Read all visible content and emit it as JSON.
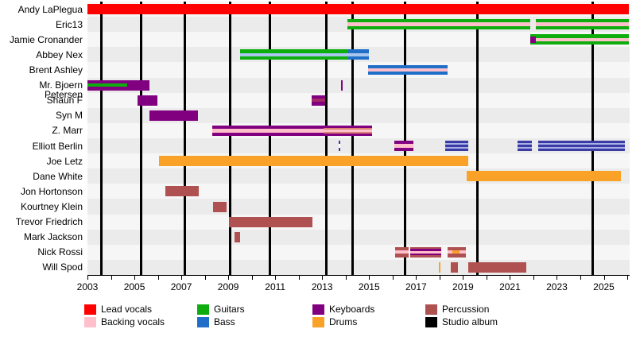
{
  "chart_data": {
    "type": "timeline",
    "x_axis": {
      "start_year": 2003,
      "end_year": 2026.1,
      "tick_labels": [
        "2003",
        "2005",
        "2007",
        "2009",
        "2011",
        "2013",
        "2015",
        "2017",
        "2019",
        "2021",
        "2023",
        "2025"
      ],
      "minor_tick_every_years": 1
    },
    "colors": {
      "red": "#FE0000",
      "pink": "#FFC0CB",
      "green": "#0CAD0C",
      "blue": "#1F6FC9",
      "lightblue": "#A9C6EE",
      "purple": "#800080",
      "magenta": "#A62A68",
      "salmon": "#DD8273",
      "indigo": "#3B3BA6",
      "lavender": "#A9B2E4",
      "orange": "#F9A227",
      "percussion": "#B05151",
      "black": "#000000",
      "white": "#FFFFFF"
    },
    "legend": [
      {
        "label": "Lead vocals",
        "color_key": "red",
        "col": 0,
        "row": 0
      },
      {
        "label": "Backing vocals",
        "color_key": "pink",
        "col": 0,
        "row": 1
      },
      {
        "label": "Guitars",
        "color_key": "green",
        "col": 1,
        "row": 0
      },
      {
        "label": "Bass",
        "color_key": "blue",
        "col": 1,
        "row": 1
      },
      {
        "label": "Keyboards",
        "color_key": "purple",
        "col": 2,
        "row": 0
      },
      {
        "label": "Drums",
        "color_key": "orange",
        "col": 2,
        "row": 1
      },
      {
        "label": "Percussion",
        "color_key": "percussion",
        "col": 3,
        "row": 0
      },
      {
        "label": "Studio album",
        "color_key": "black",
        "col": 3,
        "row": 1
      }
    ],
    "studio_album_lines_years": [
      2003.6,
      2005.27,
      2007.16,
      2009.09,
      2010.78,
      2013.18,
      2014.3,
      2016.53,
      2019.6,
      2024.54
    ],
    "members": [
      {
        "name": "Andy LaPlegua",
        "segments": [
          {
            "start": 2003.0,
            "end": 2026.05,
            "stripes": [
              "red"
            ]
          }
        ]
      },
      {
        "name": "Eric13",
        "segments": [
          {
            "start": 2014.07,
            "end": 2021.88,
            "stripes": [
              "green",
              "pink",
              "green"
            ]
          },
          {
            "start": 2022.12,
            "end": 2026.05,
            "stripes": [
              "green",
              "pink",
              "green"
            ]
          }
        ]
      },
      {
        "name": "Jamie Cronander",
        "segments": [
          {
            "start": 2021.85,
            "end": 2022.1,
            "stripes": [
              "green",
              "purple",
              "purple",
              "purple",
              "green"
            ]
          },
          {
            "start": 2022.1,
            "end": 2026.05,
            "stripes": [
              "green",
              "pink",
              "green"
            ]
          }
        ]
      },
      {
        "name": "Abbey Nex",
        "segments": [
          {
            "start": 2009.5,
            "end": 2014.1,
            "stripes": [
              "green",
              "lightblue",
              "green"
            ]
          },
          {
            "start": 2014.1,
            "end": 2014.98,
            "stripes": [
              "blue",
              "lightblue",
              "blue"
            ]
          }
        ]
      },
      {
        "name": "Brent Ashley",
        "segments": [
          {
            "start": 2014.95,
            "end": 2018.33,
            "stripes": [
              "blue",
              "pink",
              "blue"
            ]
          }
        ]
      },
      {
        "name": "Mr. Bjoern Petersen",
        "segments": [
          {
            "start": 2003.0,
            "end": 2004.69,
            "stripes": [
              "purple",
              "green",
              "purple"
            ]
          },
          {
            "start": 2004.69,
            "end": 2005.64,
            "stripes": [
              "purple"
            ]
          },
          {
            "start": 2013.79,
            "end": 2013.86,
            "stripes": [
              "purple"
            ]
          }
        ]
      },
      {
        "name": "Shaun F",
        "segments": [
          {
            "start": 2005.13,
            "end": 2005.98,
            "stripes": [
              "purple"
            ]
          },
          {
            "start": 2012.54,
            "end": 2013.12,
            "stripes": [
              "purple",
              "magenta",
              "purple"
            ]
          }
        ]
      },
      {
        "name": "Syn M",
        "segments": [
          {
            "start": 2005.64,
            "end": 2007.7,
            "stripes": [
              "purple"
            ]
          }
        ]
      },
      {
        "name": "Z. Marr",
        "segments": [
          {
            "start": 2008.31,
            "end": 2013.05,
            "stripes": [
              "purple",
              "pink",
              "purple"
            ]
          },
          {
            "start": 2013.05,
            "end": 2015.11,
            "stripes": [
              "purple",
              "salmon",
              "pink",
              "salmon",
              "purple"
            ]
          }
        ]
      },
      {
        "name": "Elliott Berlin",
        "segments": [
          {
            "start": 2013.72,
            "end": 2013.78,
            "stripes": [
              "indigo",
              "white",
              "indigo"
            ]
          },
          {
            "start": 2016.06,
            "end": 2016.88,
            "stripes": [
              "purple",
              "pink",
              "purple"
            ]
          },
          {
            "start": 2018.23,
            "end": 2019.24,
            "stripes": [
              "indigo",
              "lavender",
              "indigo",
              "lavender",
              "indigo"
            ]
          },
          {
            "start": 2021.34,
            "end": 2021.95,
            "stripes": [
              "indigo",
              "lavender",
              "indigo",
              "lavender",
              "indigo"
            ]
          },
          {
            "start": 2022.22,
            "end": 2025.91,
            "stripes": [
              "indigo",
              "lavender",
              "indigo",
              "lavender",
              "indigo"
            ]
          }
        ]
      },
      {
        "name": "Joe Letz",
        "segments": [
          {
            "start": 2006.05,
            "end": 2019.24,
            "stripes": [
              "orange"
            ]
          }
        ]
      },
      {
        "name": "Dane White",
        "segments": [
          {
            "start": 2019.17,
            "end": 2025.74,
            "stripes": [
              "orange"
            ]
          }
        ]
      },
      {
        "name": "Jon Hortonson",
        "segments": [
          {
            "start": 2006.32,
            "end": 2007.74,
            "stripes": [
              "percussion"
            ]
          }
        ]
      },
      {
        "name": "Kourtney Klein",
        "segments": [
          {
            "start": 2008.35,
            "end": 2008.92,
            "stripes": [
              "percussion"
            ]
          }
        ]
      },
      {
        "name": "Trevor Friedrich",
        "segments": [
          {
            "start": 2009.02,
            "end": 2012.58,
            "stripes": [
              "percussion"
            ]
          }
        ]
      },
      {
        "name": "Mark Jackson",
        "segments": [
          {
            "start": 2009.26,
            "end": 2009.5,
            "stripes": [
              "percussion"
            ]
          }
        ]
      },
      {
        "name": "Nick Rossi",
        "segments": [
          {
            "start": 2016.1,
            "end": 2016.7,
            "stripes": [
              "percussion",
              "pink",
              "percussion"
            ]
          },
          {
            "start": 2016.74,
            "end": 2018.06,
            "stripes": [
              "percussion",
              "purple",
              "pink",
              "purple",
              "percussion"
            ]
          },
          {
            "start": 2018.33,
            "end": 2018.55,
            "stripes": [
              "percussion",
              "pink",
              "percussion"
            ]
          },
          {
            "start": 2018.55,
            "end": 2018.85,
            "stripes": [
              "percussion",
              "orange",
              "percussion"
            ]
          },
          {
            "start": 2018.85,
            "end": 2019.14,
            "stripes": [
              "percussion",
              "pink",
              "percussion"
            ]
          }
        ]
      },
      {
        "name": "Will Spod",
        "segments": [
          {
            "start": 2017.96,
            "end": 2018.03,
            "stripes": [
              "orange"
            ]
          },
          {
            "start": 2018.47,
            "end": 2018.8,
            "stripes": [
              "percussion"
            ]
          },
          {
            "start": 2019.24,
            "end": 2021.71,
            "stripes": [
              "percussion"
            ]
          }
        ]
      }
    ],
    "layout_hints": {
      "band_colors": [
        "#F6F6F6",
        "#EBEBEB"
      ],
      "grid": "studio-album vertical lines only",
      "legend_position": "bottom"
    }
  }
}
